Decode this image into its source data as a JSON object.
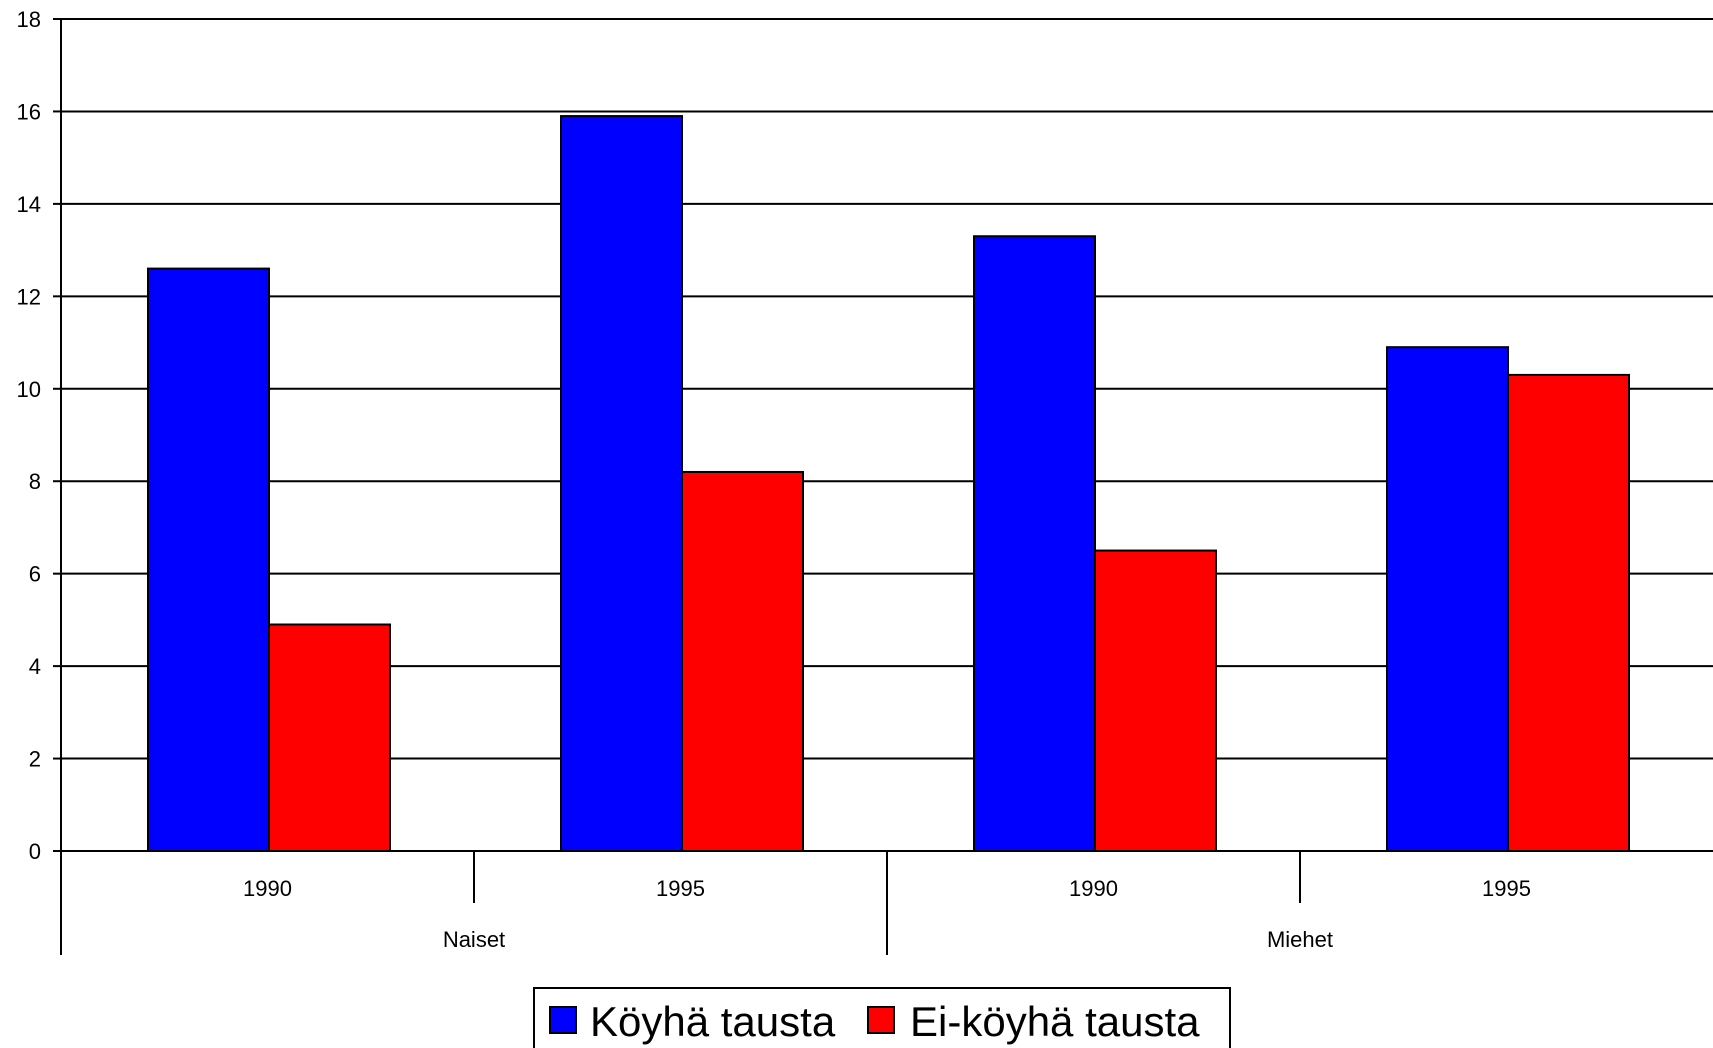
{
  "chart_data": {
    "type": "bar",
    "title": "",
    "xlabel": "",
    "ylabel": "",
    "ylim": [
      0,
      18
    ],
    "yticks": [
      0,
      2,
      4,
      6,
      8,
      10,
      12,
      14,
      16,
      18
    ],
    "grid": true,
    "legend_position": "bottom-center",
    "groups": [
      "Naiset",
      "Miehet"
    ],
    "categories": [
      "1990",
      "1995",
      "1990",
      "1995"
    ],
    "category_group_index": [
      0,
      0,
      1,
      1
    ],
    "series": [
      {
        "name": "Köyhä tausta",
        "color": "#0000ff",
        "values": [
          12.6,
          15.9,
          13.3,
          10.9
        ]
      },
      {
        "name": "Ei-köyhä tausta",
        "color": "#ff0000",
        "values": [
          4.9,
          8.2,
          6.5,
          10.3
        ]
      }
    ]
  }
}
